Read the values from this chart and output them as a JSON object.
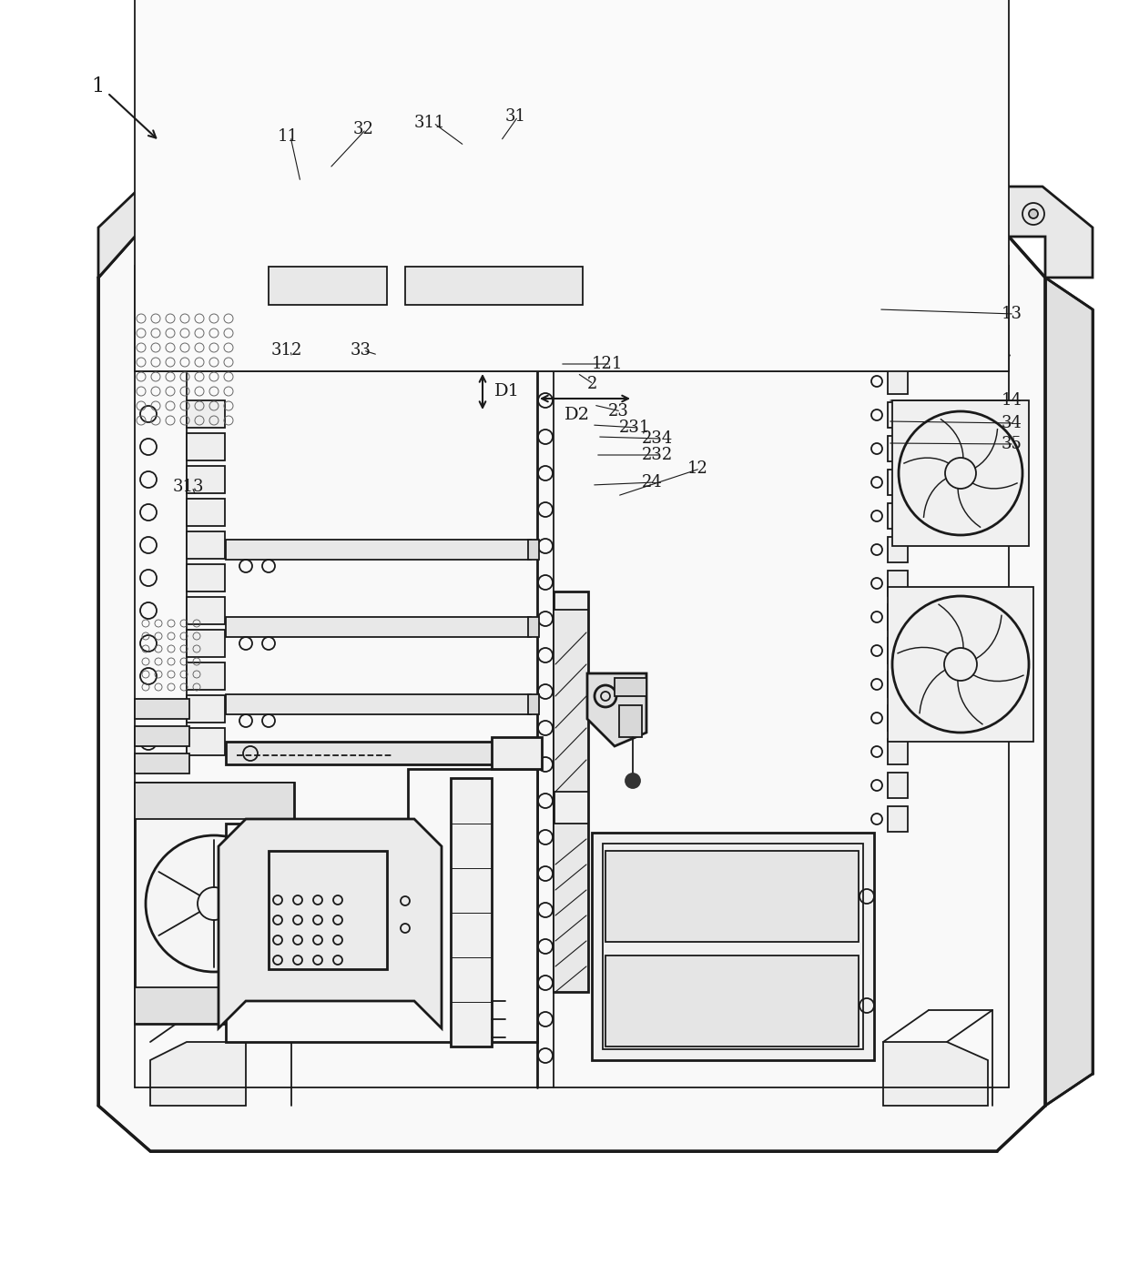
{
  "background_color": "#ffffff",
  "line_color": "#1a1a1a",
  "gray_fill": "#e8e8e8",
  "light_gray": "#f0f0f0",
  "dark_gray": "#c0c0c0"
}
